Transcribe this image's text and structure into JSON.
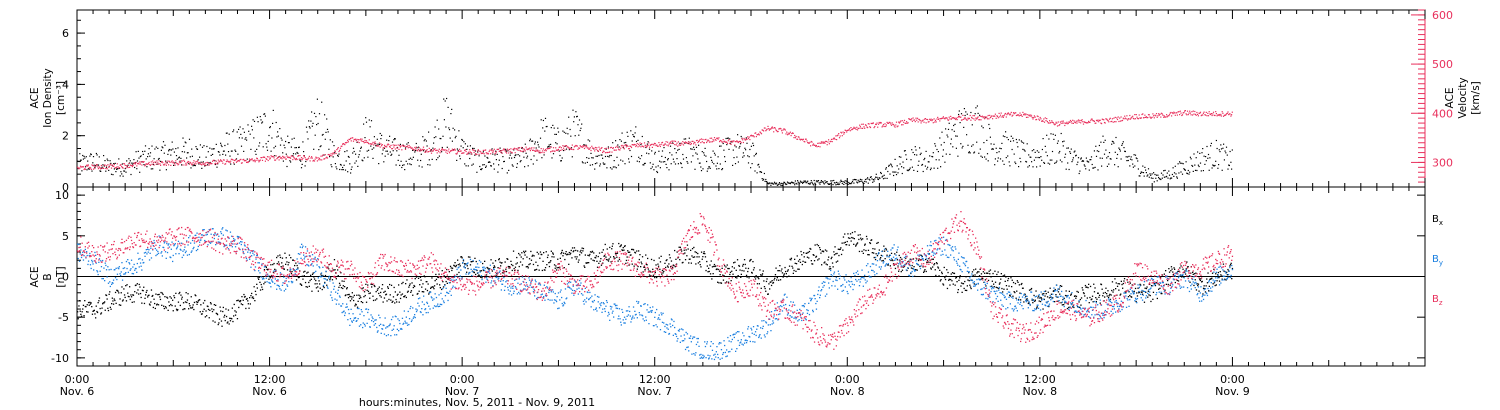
{
  "colors": {
    "black": "#000000",
    "pink": "#e8305c",
    "blue": "#1a7fe0"
  },
  "xaxis": {
    "range_hours": [
      0,
      84
    ],
    "ticks": [
      {
        "hour": 0,
        "time": "0:00",
        "day": "Nov. 6"
      },
      {
        "hour": 12,
        "time": "12:00",
        "day": "Nov. 6"
      },
      {
        "hour": 24,
        "time": "0:00",
        "day": "Nov. 7"
      },
      {
        "hour": 36,
        "time": "12:00",
        "day": "Nov. 7"
      },
      {
        "hour": 48,
        "time": "0:00",
        "day": "Nov. 8"
      },
      {
        "hour": 60,
        "time": "12:00",
        "day": "Nov. 8"
      },
      {
        "hour": 72,
        "time": "0:00",
        "day": "Nov. 9"
      }
    ],
    "title": "hours:minutes, Nov.  5, 2011 - Nov.  9, 2011"
  },
  "chart_data": [
    {
      "type": "scatter",
      "panel": "top",
      "ylabel_left": [
        "ACE",
        "Ion Density",
        "[cm⁻³]"
      ],
      "ylim_left": [
        0,
        6.9
      ],
      "yticks_left": [
        "0",
        "2",
        "4",
        "6"
      ],
      "ylabel_right": [
        "ACE",
        "Velocity",
        "[km/s]"
      ],
      "ylim_right": [
        250,
        610
      ],
      "yticks_right": [
        "300",
        "400",
        "500",
        "600"
      ],
      "x_unit": "hours since Nov. 6 0:00",
      "series": [
        {
          "axis": "left",
          "color": "black",
          "x": [
            0,
            1,
            2,
            3,
            4,
            5,
            6,
            7,
            8,
            9,
            10,
            11,
            12,
            13,
            14,
            15,
            16,
            17,
            18,
            19,
            20,
            21,
            22,
            23,
            24,
            25,
            26,
            27,
            28,
            29,
            30,
            31,
            32,
            33,
            34,
            35,
            36,
            37,
            38,
            39,
            40,
            41,
            42,
            43,
            44,
            45,
            46,
            47,
            48,
            49,
            50,
            51,
            52,
            53,
            54,
            55,
            56,
            57,
            58,
            59,
            60,
            61,
            62,
            63,
            64,
            65,
            66,
            67,
            68,
            69,
            70,
            71,
            72
          ],
          "values": [
            0.9,
            1.0,
            0.8,
            0.8,
            1.1,
            1.2,
            1.3,
            1.4,
            1.1,
            1.5,
            1.6,
            1.9,
            2.4,
            1.4,
            1.3,
            2.6,
            1.2,
            1.0,
            2.0,
            1.5,
            1.3,
            1.2,
            1.6,
            2.6,
            1.4,
            1.0,
            1.1,
            1.0,
            1.2,
            2.0,
            1.6,
            2.2,
            1.3,
            1.1,
            1.6,
            1.8,
            1.0,
            1.2,
            1.4,
            1.1,
            1.2,
            1.5,
            1.3,
            0.15,
            0.15,
            0.2,
            0.2,
            0.2,
            0.2,
            0.25,
            0.4,
            0.8,
            1.2,
            1.0,
            1.6,
            2.2,
            2.4,
            1.6,
            1.5,
            1.2,
            1.3,
            1.6,
            1.1,
            0.8,
            1.5,
            1.3,
            0.9,
            0.4,
            0.5,
            0.8,
            1.1,
            1.3,
            1.0
          ]
        },
        {
          "axis": "right",
          "color": "pink",
          "x": [
            0,
            1,
            2,
            3,
            4,
            5,
            6,
            7,
            8,
            9,
            10,
            11,
            12,
            13,
            14,
            15,
            16,
            17,
            18,
            19,
            20,
            21,
            22,
            23,
            24,
            25,
            26,
            27,
            28,
            29,
            30,
            31,
            32,
            33,
            34,
            35,
            36,
            37,
            38,
            39,
            40,
            41,
            42,
            43,
            44,
            45,
            46,
            47,
            48,
            49,
            50,
            51,
            52,
            53,
            54,
            55,
            56,
            57,
            58,
            59,
            60,
            61,
            62,
            63,
            64,
            65,
            66,
            67,
            68,
            69,
            70,
            71,
            72
          ],
          "values": [
            290,
            292,
            293,
            295,
            298,
            300,
            300,
            301,
            300,
            302,
            304,
            305,
            310,
            312,
            310,
            308,
            320,
            348,
            345,
            335,
            332,
            330,
            325,
            324,
            323,
            322,
            323,
            325,
            328,
            325,
            330,
            332,
            330,
            325,
            332,
            336,
            336,
            340,
            338,
            345,
            348,
            340,
            353,
            370,
            365,
            350,
            335,
            345,
            368,
            375,
            378,
            378,
            387,
            385,
            390,
            392,
            392,
            395,
            398,
            398,
            390,
            380,
            382,
            385,
            385,
            390,
            395,
            395,
            398,
            402,
            400,
            400,
            400
          ]
        }
      ]
    },
    {
      "type": "scatter",
      "panel": "bottom",
      "ylabel": [
        "ACE",
        "B",
        "[nT]"
      ],
      "ylim": [
        -11,
        11
      ],
      "yticks": [
        "-10",
        "-5",
        "0",
        "5",
        "10"
      ],
      "x_unit": "hours since Nov. 6 0:00",
      "zero_line": true,
      "legend": [
        {
          "main": "B",
          "sub": "x",
          "color": "black"
        },
        {
          "main": "B",
          "sub": "y",
          "color": "blue"
        },
        {
          "main": "B",
          "sub": "z",
          "color": "pink"
        }
      ],
      "series": [
        {
          "name": "Bx",
          "color": "black",
          "x": [
            0,
            1,
            2,
            3,
            4,
            5,
            6,
            7,
            8,
            9,
            10,
            11,
            12,
            13,
            14,
            15,
            16,
            17,
            18,
            19,
            20,
            21,
            22,
            23,
            24,
            25,
            26,
            27,
            28,
            29,
            30,
            31,
            32,
            33,
            34,
            35,
            36,
            37,
            38,
            39,
            40,
            41,
            42,
            43,
            44,
            45,
            46,
            47,
            48,
            49,
            50,
            51,
            52,
            53,
            54,
            55,
            56,
            57,
            58,
            59,
            60,
            61,
            62,
            63,
            64,
            65,
            66,
            67,
            68,
            69,
            70,
            71,
            72
          ],
          "values": [
            -4,
            -4,
            -3,
            -2,
            -2,
            -3,
            -3,
            -3,
            -4,
            -5,
            -4,
            -2,
            1,
            2,
            0,
            -1,
            1,
            -3,
            -2,
            -2,
            -2,
            -1,
            -1,
            0,
            2,
            1,
            1,
            2,
            2,
            2,
            2,
            3,
            2,
            3,
            3,
            2,
            1,
            2,
            3,
            2,
            0,
            1,
            1,
            -1,
            1,
            2,
            3,
            2,
            5,
            4,
            3,
            2,
            1,
            2,
            0,
            -1,
            0,
            0,
            -1,
            -2,
            -3,
            -2,
            -3,
            -2,
            -2,
            -1,
            -2,
            -2,
            0,
            1,
            -1,
            0,
            1
          ]
        },
        {
          "name": "By",
          "color": "blue",
          "x": [
            0,
            1,
            2,
            3,
            4,
            5,
            6,
            7,
            8,
            9,
            10,
            11,
            12,
            13,
            14,
            15,
            16,
            17,
            18,
            19,
            20,
            21,
            22,
            23,
            24,
            25,
            26,
            27,
            28,
            29,
            30,
            31,
            32,
            33,
            34,
            35,
            36,
            37,
            38,
            39,
            40,
            41,
            42,
            43,
            44,
            45,
            46,
            47,
            48,
            49,
            50,
            51,
            52,
            53,
            54,
            55,
            56,
            57,
            58,
            59,
            60,
            61,
            62,
            63,
            64,
            65,
            66,
            67,
            68,
            69,
            70,
            71,
            72
          ],
          "values": [
            3,
            2,
            0,
            1,
            2,
            4,
            3,
            4,
            5,
            5,
            4,
            2,
            0,
            -1,
            3,
            1,
            -2,
            -5,
            -5,
            -6,
            -6,
            -4,
            -3,
            -2,
            1,
            1,
            0,
            -1,
            -1,
            -2,
            -3,
            -1,
            -3,
            -4,
            -5,
            -4,
            -5,
            -6,
            -8,
            -9,
            -9,
            -8,
            -7,
            -6,
            -3,
            -5,
            -3,
            0,
            -1,
            0,
            2,
            3,
            1,
            3,
            4,
            2,
            -1,
            -2,
            -3,
            -3,
            -3,
            -2,
            -3,
            -4,
            -4,
            -3,
            -2,
            -1,
            -1,
            0,
            -2,
            0,
            1
          ]
        },
        {
          "name": "Bz",
          "color": "pink",
          "x": [
            0,
            1,
            2,
            3,
            4,
            5,
            6,
            7,
            8,
            9,
            10,
            11,
            12,
            13,
            14,
            15,
            16,
            17,
            18,
            19,
            20,
            21,
            22,
            23,
            24,
            25,
            26,
            27,
            28,
            29,
            30,
            31,
            32,
            33,
            34,
            35,
            36,
            37,
            38,
            39,
            40,
            41,
            42,
            43,
            44,
            45,
            46,
            47,
            48,
            49,
            50,
            51,
            52,
            53,
            54,
            55,
            56,
            57,
            58,
            59,
            60,
            61,
            62,
            63,
            64,
            65,
            66,
            67,
            68,
            69,
            70,
            71,
            72
          ],
          "values": [
            4,
            3,
            3,
            4,
            5,
            4,
            5,
            5,
            5,
            4,
            4,
            2,
            1,
            0,
            2,
            3,
            1,
            1,
            -1,
            2,
            1,
            1,
            2,
            0,
            -1,
            -1,
            0,
            0,
            -1,
            -2,
            1,
            -1,
            -1,
            2,
            2,
            1,
            0,
            0,
            5,
            7,
            2,
            -2,
            -1,
            -4,
            -4,
            -5,
            -7,
            -8,
            -6,
            -3,
            -2,
            1,
            3,
            2,
            5,
            7,
            4,
            -4,
            -6,
            -7,
            -6,
            -4,
            -4,
            -5,
            -4,
            -3,
            1,
            0,
            -1,
            1,
            1,
            2,
            3
          ]
        }
      ]
    }
  ]
}
